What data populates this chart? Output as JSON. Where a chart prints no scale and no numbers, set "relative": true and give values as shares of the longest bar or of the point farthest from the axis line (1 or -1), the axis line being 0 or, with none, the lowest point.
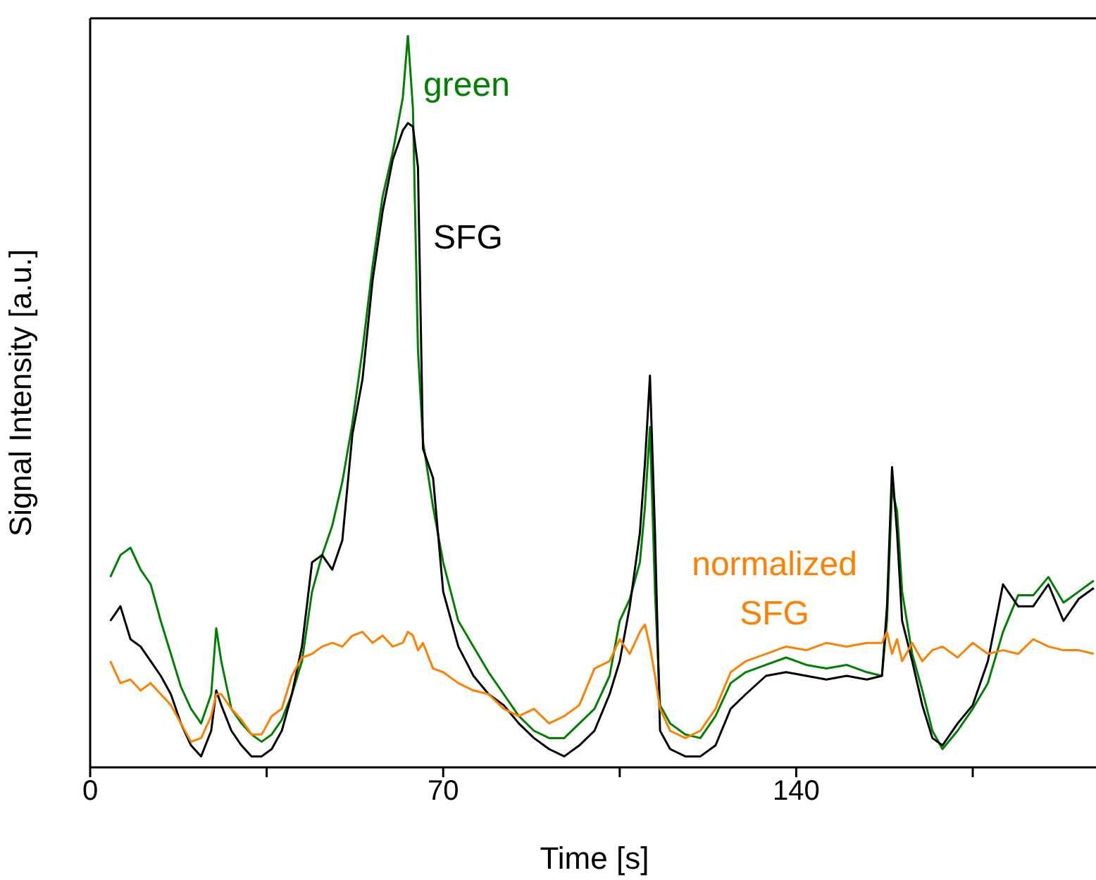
{
  "chart_data": {
    "type": "line",
    "relative": true,
    "xlabel": "Time [s]",
    "ylabel": "Signal Intensity [a.u.]",
    "xlim": [
      0,
      200
    ],
    "xticks": [
      0,
      {
        "value": 35,
        "label": null
      },
      70,
      {
        "value": 105,
        "label": null
      },
      140,
      {
        "value": 175,
        "label": null
      }
    ],
    "marker": "none",
    "line_style": "solid",
    "x": [
      4,
      6,
      8,
      10,
      12,
      14,
      16,
      18,
      20,
      22,
      24,
      25,
      26,
      28,
      30,
      32,
      34,
      36,
      38,
      40,
      42,
      44,
      46,
      48,
      50,
      52,
      54,
      56,
      58,
      60,
      62,
      63,
      64,
      65,
      66,
      68,
      70,
      73,
      76,
      79,
      82,
      85,
      88,
      91,
      94,
      97,
      100,
      103,
      105,
      107,
      109,
      110,
      111,
      112,
      113,
      115,
      118,
      121,
      124,
      127,
      130,
      134,
      138,
      142,
      146,
      150,
      154,
      157,
      158,
      159,
      160,
      161,
      163,
      165,
      167,
      169,
      172,
      175,
      178,
      181,
      184,
      187,
      190,
      193,
      196,
      199
    ],
    "series": [
      {
        "name": "green",
        "color": "#008000",
        "values": [
          0.26,
          0.29,
          0.3,
          0.27,
          0.25,
          0.2,
          0.155,
          0.11,
          0.08,
          0.06,
          0.1,
          0.19,
          0.145,
          0.08,
          0.06,
          0.045,
          0.035,
          0.045,
          0.065,
          0.1,
          0.145,
          0.24,
          0.29,
          0.33,
          0.39,
          0.47,
          0.57,
          0.685,
          0.78,
          0.84,
          0.915,
          1,
          0.9,
          0.57,
          0.445,
          0.355,
          0.28,
          0.2,
          0.165,
          0.13,
          0.1,
          0.07,
          0.05,
          0.04,
          0.04,
          0.06,
          0.08,
          0.125,
          0.2,
          0.23,
          0.28,
          0.355,
          0.465,
          0.24,
          0.085,
          0.06,
          0.045,
          0.04,
          0.07,
          0.115,
          0.13,
          0.14,
          0.15,
          0.14,
          0.135,
          0.14,
          0.13,
          0.125,
          0.2,
          0.38,
          0.35,
          0.24,
          0.155,
          0.105,
          0.05,
          0.025,
          0.05,
          0.08,
          0.115,
          0.185,
          0.235,
          0.235,
          0.26,
          0.225,
          0.24,
          0.255
        ]
      },
      {
        "name": "SFG",
        "color": "#000000",
        "values": [
          0.2,
          0.22,
          0.175,
          0.165,
          0.145,
          0.125,
          0.1,
          0.06,
          0.03,
          0.015,
          0.05,
          0.105,
          0.085,
          0.05,
          0.03,
          0.015,
          0.015,
          0.025,
          0.05,
          0.1,
          0.165,
          0.28,
          0.29,
          0.27,
          0.31,
          0.455,
          0.53,
          0.665,
          0.76,
          0.83,
          0.87,
          0.88,
          0.875,
          0.82,
          0.435,
          0.395,
          0.24,
          0.165,
          0.125,
          0.1,
          0.085,
          0.06,
          0.04,
          0.025,
          0.015,
          0.03,
          0.05,
          0.1,
          0.145,
          0.22,
          0.32,
          0.415,
          0.535,
          0.32,
          0.05,
          0.025,
          0.015,
          0.015,
          0.03,
          0.08,
          0.1,
          0.125,
          0.13,
          0.125,
          0.12,
          0.125,
          0.12,
          0.125,
          0.22,
          0.41,
          0.32,
          0.2,
          0.145,
          0.085,
          0.04,
          0.03,
          0.06,
          0.085,
          0.145,
          0.25,
          0.22,
          0.22,
          0.25,
          0.2,
          0.23,
          0.245
        ]
      },
      {
        "name": "normalized SFG",
        "color": "#ff8000",
        "values": [
          0.145,
          0.115,
          0.12,
          0.105,
          0.115,
          0.1,
          0.085,
          0.06,
          0.035,
          0.04,
          0.07,
          0.1,
          0.1,
          0.08,
          0.065,
          0.045,
          0.045,
          0.07,
          0.08,
          0.125,
          0.15,
          0.155,
          0.165,
          0.17,
          0.165,
          0.18,
          0.185,
          0.17,
          0.18,
          0.165,
          0.17,
          0.185,
          0.18,
          0.16,
          0.17,
          0.135,
          0.13,
          0.115,
          0.105,
          0.1,
          0.08,
          0.07,
          0.08,
          0.06,
          0.07,
          0.085,
          0.135,
          0.145,
          0.175,
          0.155,
          0.185,
          0.195,
          0.165,
          0.125,
          0.08,
          0.05,
          0.04,
          0.05,
          0.08,
          0.13,
          0.145,
          0.155,
          0.165,
          0.16,
          0.17,
          0.165,
          0.17,
          0.17,
          0.185,
          0.155,
          0.175,
          0.145,
          0.17,
          0.145,
          0.16,
          0.165,
          0.15,
          0.17,
          0.155,
          0.16,
          0.155,
          0.175,
          0.165,
          0.16,
          0.16,
          0.155
        ]
      }
    ]
  }
}
